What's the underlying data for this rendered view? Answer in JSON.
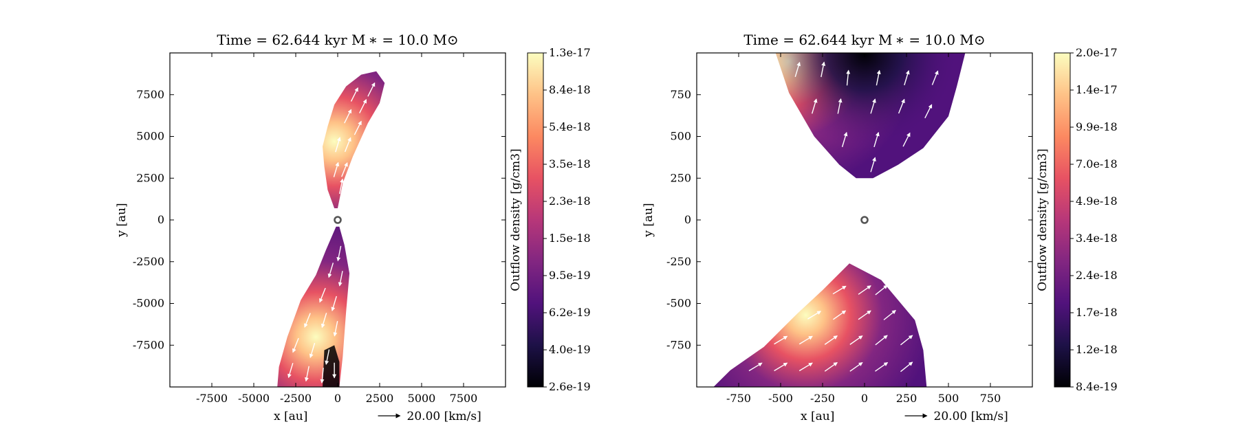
{
  "colors": {
    "colormap": [
      "#000004",
      "#1d1147",
      "#51127c",
      "#822681",
      "#b73779",
      "#e75263",
      "#fc8961",
      "#fec287",
      "#fcfdbf"
    ],
    "arrow": "#ffffff",
    "star_marker": "#555555",
    "axes": "#000000"
  },
  "chart_data": [
    {
      "type": "heatmap",
      "title": "Time = 62.644 kyr    M ∗ = 10.0 M⊙",
      "xlabel": "x [au]",
      "ylabel": "y [au]",
      "xlim": [
        -10000,
        10000
      ],
      "ylim": [
        -10000,
        10000
      ],
      "xticks": [
        -7500,
        -5000,
        -2500,
        0,
        2500,
        5000,
        7500
      ],
      "xtick_labels": [
        "-7500",
        "-5000",
        "-2500",
        "0",
        "2500",
        "5000",
        "7500"
      ],
      "yticks": [
        -7500,
        -5000,
        -2500,
        0,
        2500,
        5000,
        7500
      ],
      "ytick_labels": [
        "-7500",
        "-5000",
        "-2500",
        "0",
        "2500",
        "5000",
        "7500"
      ],
      "velocity_key": {
        "label": "20.00 [km/s]",
        "value": 20.0
      },
      "colorbar": {
        "label": "Outflow density [g/cm3]",
        "scale": "log",
        "ticks": [
          "2.6e-19",
          "4.0e-19",
          "6.2e-19",
          "9.5e-19",
          "1.5e-18",
          "2.3e-18",
          "3.5e-18",
          "5.4e-18",
          "8.4e-18",
          "1.3e-17"
        ]
      },
      "lobes": [
        {
          "name": "north",
          "outline": [
            [
              -200,
              700
            ],
            [
              -600,
              1800
            ],
            [
              -800,
              3200
            ],
            [
              -900,
              4400
            ],
            [
              -600,
              5600
            ],
            [
              -200,
              6900
            ],
            [
              500,
              8000
            ],
            [
              1400,
              8700
            ],
            [
              2300,
              8900
            ],
            [
              2800,
              8200
            ],
            [
              2500,
              7000
            ],
            [
              1800,
              5800
            ],
            [
              900,
              3800
            ],
            [
              300,
              2200
            ],
            [
              0,
              700
            ]
          ],
          "hotspot": [
            -200,
            4700
          ]
        },
        {
          "name": "south",
          "outline": [
            [
              -100,
              -400
            ],
            [
              -700,
              -1800
            ],
            [
              -1300,
              -3300
            ],
            [
              -2200,
              -4800
            ],
            [
              -3000,
              -7000
            ],
            [
              -3500,
              -8800
            ],
            [
              -3600,
              -10000
            ],
            [
              100,
              -10000
            ],
            [
              300,
              -8200
            ],
            [
              500,
              -5500
            ],
            [
              700,
              -3200
            ],
            [
              400,
              -1500
            ],
            [
              100,
              -400
            ]
          ],
          "hotspot": [
            -1300,
            -7000
          ]
        }
      ],
      "arrows": [
        [
          -100,
          3000,
          0.3,
          1
        ],
        [
          400,
          3000,
          0.4,
          1
        ],
        [
          0,
          4500,
          0.3,
          1
        ],
        [
          600,
          4500,
          0.4,
          1
        ],
        [
          1200,
          5500,
          0.5,
          1
        ],
        [
          600,
          6200,
          0.5,
          1
        ],
        [
          1500,
          6800,
          0.5,
          1
        ],
        [
          1000,
          7500,
          0.5,
          1
        ],
        [
          2000,
          7800,
          0.5,
          1
        ],
        [
          200,
          2000,
          0.2,
          1
        ],
        [
          1500,
          4800,
          0.5,
          1
        ],
        [
          100,
          -2000,
          -0.2,
          -1
        ],
        [
          -400,
          -3000,
          -0.3,
          -1
        ],
        [
          200,
          -3500,
          -0.2,
          -1
        ],
        [
          -900,
          -4500,
          -0.4,
          -1
        ],
        [
          -200,
          -5000,
          -0.3,
          -1
        ],
        [
          -1800,
          -6000,
          -0.4,
          -1
        ],
        [
          -800,
          -6000,
          -0.3,
          -1
        ],
        [
          -100,
          -6500,
          -0.2,
          -1
        ],
        [
          -2500,
          -7500,
          -0.4,
          -1
        ],
        [
          -1500,
          -7800,
          -0.3,
          -1
        ],
        [
          -600,
          -8200,
          -0.2,
          -1
        ],
        [
          -2800,
          -9000,
          -0.3,
          -1
        ],
        [
          -1800,
          -9200,
          -0.2,
          -1
        ],
        [
          -900,
          -9300,
          -0.1,
          -1
        ],
        [
          -200,
          -9000,
          0,
          -1
        ]
      ]
    },
    {
      "type": "heatmap",
      "title": "Time = 62.644 kyr    M ∗ = 10.0 M⊙",
      "xlabel": "x [au]",
      "ylabel": "y [au]",
      "xlim": [
        -1000,
        1000
      ],
      "ylim": [
        -1000,
        1000
      ],
      "xticks": [
        -750,
        -500,
        -250,
        0,
        250,
        500,
        750
      ],
      "xtick_labels": [
        "-750",
        "-500",
        "-250",
        "0",
        "250",
        "500",
        "750"
      ],
      "yticks": [
        -750,
        -500,
        -250,
        0,
        250,
        500,
        750
      ],
      "ytick_labels": [
        "-750",
        "-500",
        "-250",
        "0",
        "250",
        "500",
        "750"
      ],
      "velocity_key": {
        "label": "20.00 [km/s]",
        "value": 20.0
      },
      "colorbar": {
        "label": "Outflow density [g/cm3]",
        "scale": "log",
        "ticks": [
          "8.4e-19",
          "1.2e-18",
          "1.7e-18",
          "2.4e-18",
          "3.4e-18",
          "4.9e-18",
          "7.0e-18",
          "9.9e-18",
          "1.4e-17",
          "2.0e-17"
        ]
      },
      "lobes": [
        {
          "name": "north",
          "outline": [
            [
              -530,
              1000
            ],
            [
              -450,
              760
            ],
            [
              -300,
              500
            ],
            [
              -150,
              330
            ],
            [
              -50,
              250
            ],
            [
              50,
              250
            ],
            [
              200,
              330
            ],
            [
              350,
              430
            ],
            [
              500,
              620
            ],
            [
              550,
              800
            ],
            [
              600,
              1000
            ]
          ],
          "hotspot": [
            -450,
            950
          ],
          "dark_core": [
            0,
            1000
          ]
        },
        {
          "name": "south",
          "outline": [
            [
              -900,
              -1000
            ],
            [
              -800,
              -900
            ],
            [
              -600,
              -760
            ],
            [
              -400,
              -560
            ],
            [
              -250,
              -420
            ],
            [
              -90,
              -260
            ],
            [
              100,
              -360
            ],
            [
              300,
              -600
            ],
            [
              350,
              -780
            ],
            [
              370,
              -1000
            ]
          ],
          "hotspot": [
            -350,
            -570
          ]
        }
      ],
      "arrows": [
        [
          -400,
          900,
          0.3,
          1
        ],
        [
          -250,
          900,
          0.2,
          1
        ],
        [
          -100,
          850,
          0.1,
          1
        ],
        [
          80,
          850,
          0.2,
          1
        ],
        [
          250,
          850,
          0.3,
          1
        ],
        [
          420,
          850,
          0.4,
          1
        ],
        [
          -300,
          680,
          0.3,
          1
        ],
        [
          -150,
          680,
          0.2,
          1
        ],
        [
          50,
          680,
          0.3,
          1
        ],
        [
          220,
          680,
          0.4,
          1
        ],
        [
          380,
          650,
          0.5,
          1
        ],
        [
          -120,
          480,
          0.3,
          1
        ],
        [
          70,
          480,
          0.3,
          1
        ],
        [
          250,
          480,
          0.5,
          1
        ],
        [
          50,
          330,
          0.3,
          1
        ],
        [
          -650,
          -880,
          1,
          0.6
        ],
        [
          -500,
          -880,
          1,
          0.6
        ],
        [
          -350,
          -880,
          1,
          0.6
        ],
        [
          -200,
          -880,
          1,
          0.7
        ],
        [
          -50,
          -880,
          1,
          0.7
        ],
        [
          100,
          -880,
          1,
          0.7
        ],
        [
          250,
          -880,
          1,
          0.8
        ],
        [
          -500,
          -720,
          1,
          0.6
        ],
        [
          -350,
          -720,
          1,
          0.6
        ],
        [
          -200,
          -720,
          1,
          0.7
        ],
        [
          -50,
          -720,
          1,
          0.7
        ],
        [
          100,
          -720,
          1,
          0.8
        ],
        [
          250,
          -720,
          1,
          0.8
        ],
        [
          -300,
          -570,
          1,
          0.6
        ],
        [
          -150,
          -570,
          1,
          0.7
        ],
        [
          0,
          -570,
          1,
          0.7
        ],
        [
          150,
          -570,
          1,
          0.8
        ],
        [
          -150,
          -420,
          1,
          0.6
        ],
        [
          0,
          -420,
          1,
          0.7
        ],
        [
          100,
          -420,
          1,
          0.8
        ]
      ]
    }
  ]
}
